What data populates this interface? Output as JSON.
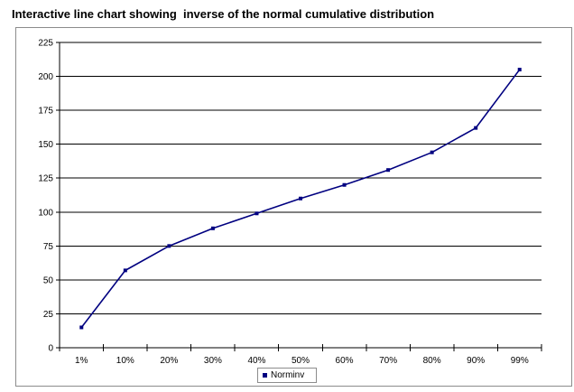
{
  "chart_data": {
    "type": "line",
    "title": "Interactive line chart showing  inverse of the normal cumulative distribution",
    "xlabel": "",
    "ylabel": "",
    "categories": [
      "1%",
      "10%",
      "20%",
      "30%",
      "40%",
      "50%",
      "60%",
      "70%",
      "80%",
      "90%",
      "99%"
    ],
    "series": [
      {
        "name": "Norminv",
        "color": "#000080",
        "values": [
          15,
          57,
          75,
          88,
          99,
          110,
          120,
          131,
          144,
          162,
          205
        ]
      }
    ],
    "ylim": [
      0,
      225
    ],
    "yticks": [
      0,
      25,
      50,
      75,
      100,
      125,
      150,
      175,
      200,
      225
    ],
    "grid": "horizontal",
    "legend_position": "bottom"
  }
}
